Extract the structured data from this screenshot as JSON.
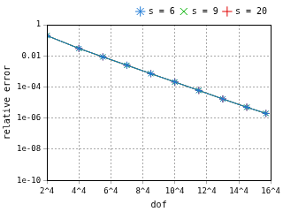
{
  "chart_data": {
    "type": "line",
    "x_label": "dof",
    "y_label": "relative error",
    "x": [
      16,
      256,
      915,
      2401,
      5220,
      10000,
      17490,
      28561,
      44205,
      60757
    ],
    "series": [
      {
        "name": "s = 20",
        "color": "#e00000",
        "marker": "plus",
        "line_style": "solid",
        "values": [
          0.2,
          0.03,
          0.0086,
          0.0025,
          0.00072,
          0.00021,
          6e-05,
          1.7e-05,
          5e-06,
          2e-06
        ]
      },
      {
        "name": "s = 9",
        "color": "#00b000",
        "marker": "cross",
        "line_style": "solid",
        "values": [
          0.2,
          0.03,
          0.0086,
          0.0025,
          0.00072,
          0.00021,
          6e-05,
          1.7e-05,
          5e-06,
          2e-06
        ]
      },
      {
        "name": "s = 6",
        "color": "#1e7ad6",
        "marker": "star",
        "line_style": "solid",
        "values": [
          0.2,
          0.03,
          0.0086,
          0.0025,
          0.00072,
          0.00021,
          6e-05,
          1.7e-05,
          5e-06,
          2e-06
        ]
      }
    ],
    "xlim": [
      16,
      65536
    ],
    "xticks": [
      {
        "value": 16,
        "label": "2^4"
      },
      {
        "value": 256,
        "label": "4^4"
      },
      {
        "value": 1296,
        "label": "6^4"
      },
      {
        "value": 4096,
        "label": "8^4"
      },
      {
        "value": 10000,
        "label": "10^4"
      },
      {
        "value": 20736,
        "label": "12^4"
      },
      {
        "value": 38416,
        "label": "14^4"
      },
      {
        "value": 65536,
        "label": "16^4"
      }
    ],
    "ylim": [
      1e-10,
      1
    ],
    "yticks": [
      {
        "value": 1e-10,
        "label": "1e-10"
      },
      {
        "value": 1e-08,
        "label": "1e-08"
      },
      {
        "value": 1e-06,
        "label": "1e-06"
      },
      {
        "value": 0.0001,
        "label": "1e-04"
      },
      0.01,
      1
    ],
    "log": "y",
    "grid": true,
    "legend": "top-right"
  }
}
